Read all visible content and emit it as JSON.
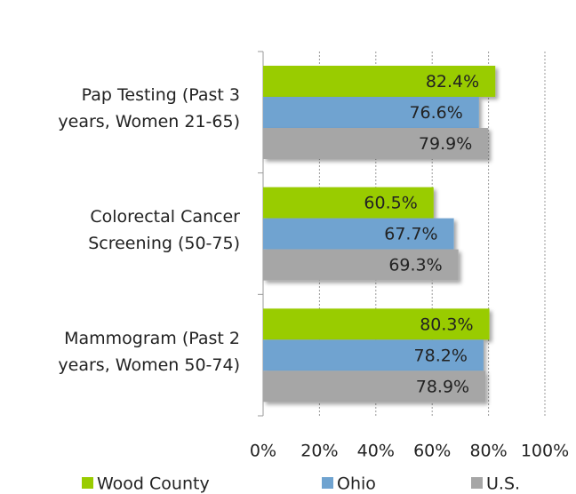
{
  "chart_data": {
    "type": "bar",
    "orientation": "horizontal",
    "categories": [
      "Pap Testing (Past 3\nyears, Women 21-65)",
      "Colorectal Cancer\nScreening (50-75)",
      "Mammogram (Past 2\nyears, Women 50-74)"
    ],
    "series": [
      {
        "name": "Wood County",
        "color": "#99cc00",
        "values": [
          82.4,
          60.5,
          80.3
        ],
        "value_labels": [
          "82.4%",
          "60.5%",
          "80.3%"
        ]
      },
      {
        "name": "Ohio",
        "color": "#6fa3d0",
        "values": [
          76.6,
          67.7,
          78.2
        ],
        "value_labels": [
          "76.6%",
          "67.7%",
          "78.2%"
        ]
      },
      {
        "name": "U.S.",
        "color": "#a6a6a6",
        "values": [
          79.9,
          69.3,
          78.9
        ],
        "value_labels": [
          "79.9%",
          "69.3%",
          "78.9%"
        ]
      }
    ],
    "xlim": [
      0,
      100
    ],
    "xticks": [
      {
        "value": 0,
        "label": "0%"
      },
      {
        "value": 20,
        "label": "20%"
      },
      {
        "value": 40,
        "label": "40%"
      },
      {
        "value": 60,
        "label": "60%"
      },
      {
        "value": 80,
        "label": "80%"
      },
      {
        "value": 100,
        "label": "100%"
      }
    ],
    "grid": true,
    "legend": "bottom"
  }
}
